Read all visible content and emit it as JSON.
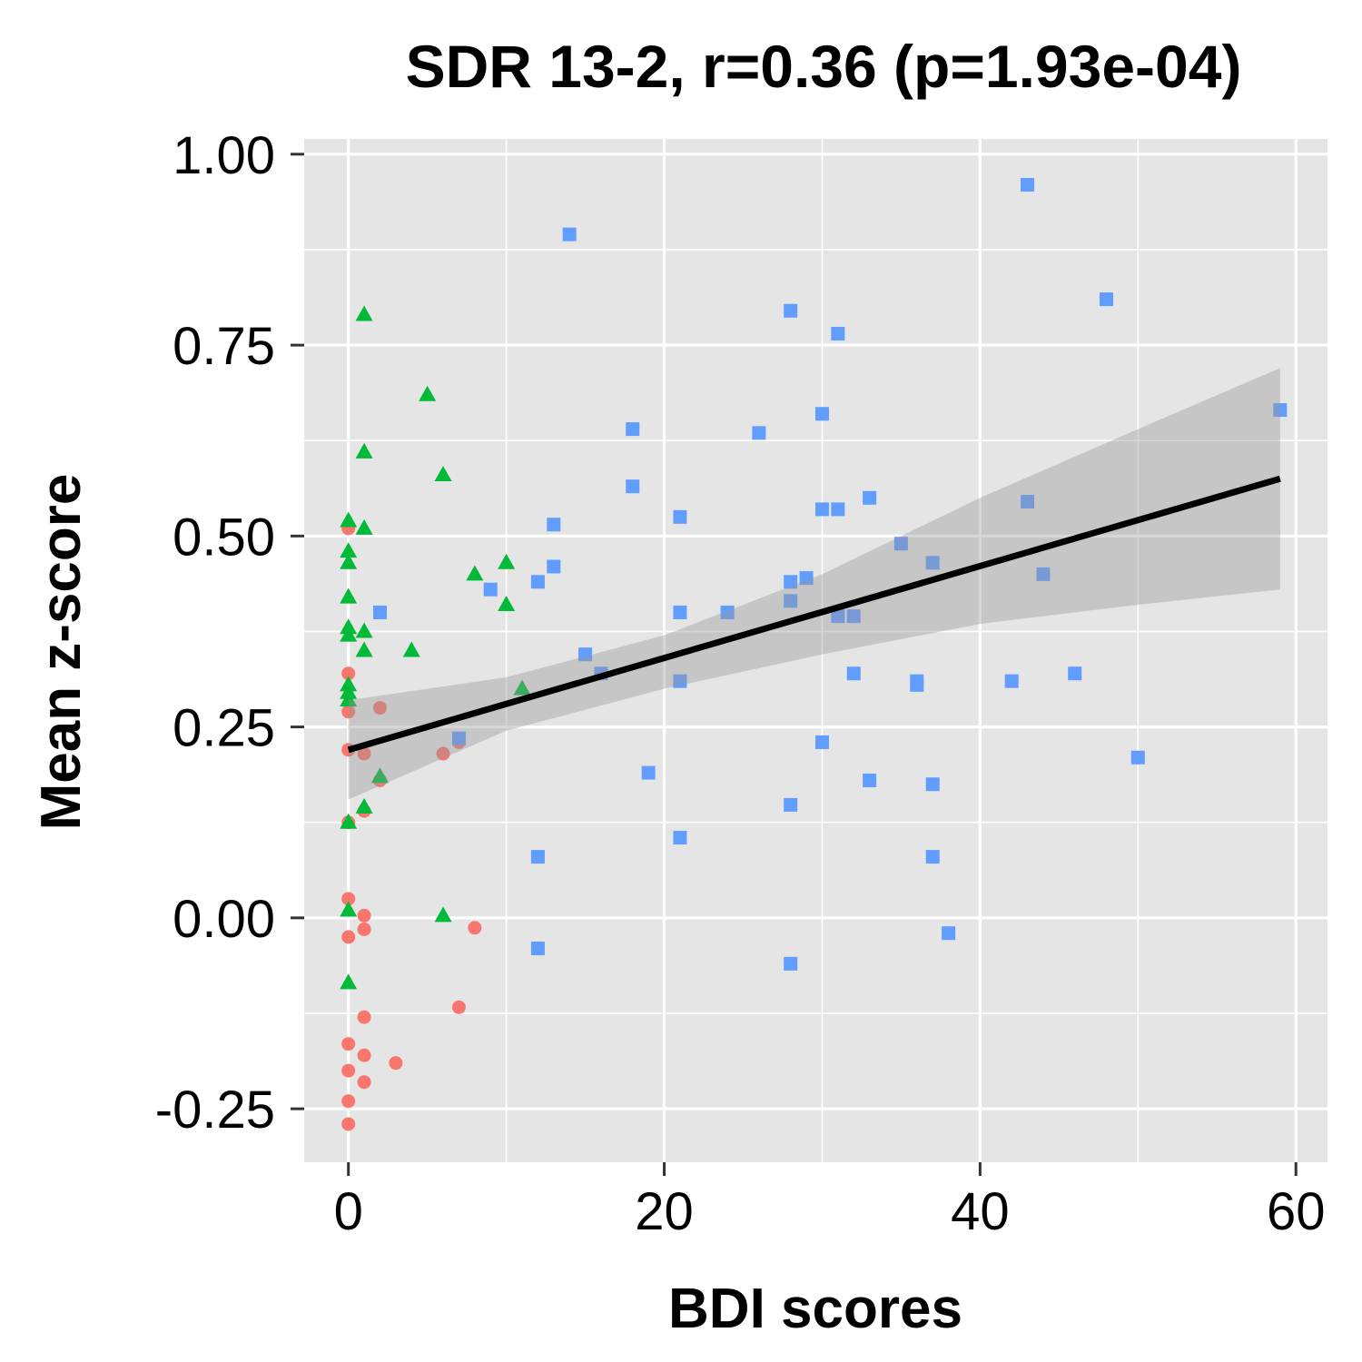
{
  "chart_data": {
    "type": "scatter",
    "title": "SDR 13-2, r=0.36 (p=1.93e-04)",
    "xlabel": "BDI scores",
    "ylabel": "Mean z-score",
    "xlim": [
      -2.8,
      62
    ],
    "ylim": [
      -0.32,
      1.02
    ],
    "x_ticks": [
      0,
      20,
      40,
      60
    ],
    "x_tick_labels": [
      "0",
      "20",
      "40",
      "60"
    ],
    "y_ticks": [
      -0.25,
      0,
      0.25,
      0.5,
      0.75,
      1.0
    ],
    "y_tick_labels": [
      "-0.25",
      "0.00",
      "0.25",
      "0.50",
      "0.75",
      "1.00"
    ],
    "grid": true,
    "legend": "none",
    "colors": {
      "panel": "#E5E5E5",
      "grid": "#FFFFFF",
      "red": "#F8766D",
      "green": "#00BA38",
      "blue": "#619CFF",
      "line": "#000000",
      "band": "#999999"
    },
    "series": [
      {
        "marker": "circle",
        "color": "#F8766D",
        "points": [
          [
            0,
            0.51
          ],
          [
            0,
            0.32
          ],
          [
            0,
            0.27
          ],
          [
            0,
            0.22
          ],
          [
            0,
            0.125
          ],
          [
            0,
            0.025
          ],
          [
            0,
            -0.025
          ],
          [
            0,
            -0.165
          ],
          [
            0,
            -0.2
          ],
          [
            0,
            -0.24
          ],
          [
            0,
            -0.27
          ],
          [
            1,
            0.215
          ],
          [
            1,
            0.14
          ],
          [
            1,
            0.003
          ],
          [
            1,
            -0.015
          ],
          [
            1,
            -0.13
          ],
          [
            1,
            -0.18
          ],
          [
            1,
            -0.215
          ],
          [
            2,
            0.275
          ],
          [
            2,
            0.18
          ],
          [
            3,
            -0.19
          ],
          [
            6,
            0.215
          ],
          [
            7,
            0.23
          ],
          [
            7,
            -0.117
          ],
          [
            8,
            -0.013
          ]
        ]
      },
      {
        "marker": "triangle",
        "color": "#00BA38",
        "points": [
          [
            0,
            0.52
          ],
          [
            0,
            0.48
          ],
          [
            0,
            0.465
          ],
          [
            0,
            0.42
          ],
          [
            0,
            0.38
          ],
          [
            0,
            0.37
          ],
          [
            0,
            0.305
          ],
          [
            0,
            0.295
          ],
          [
            0,
            0.285
          ],
          [
            0,
            0.125
          ],
          [
            0,
            0.01
          ],
          [
            0,
            -0.085
          ],
          [
            1,
            0.79
          ],
          [
            1,
            0.61
          ],
          [
            1,
            0.51
          ],
          [
            1,
            0.375
          ],
          [
            1,
            0.35
          ],
          [
            1,
            0.145
          ],
          [
            2,
            0.185
          ],
          [
            4,
            0.35
          ],
          [
            5,
            0.685
          ],
          [
            6,
            0.58
          ],
          [
            6,
            0.003
          ],
          [
            8,
            0.45
          ],
          [
            10,
            0.465
          ],
          [
            10,
            0.41
          ],
          [
            11,
            0.3
          ]
        ]
      },
      {
        "marker": "square",
        "color": "#619CFF",
        "points": [
          [
            2,
            0.4
          ],
          [
            7,
            0.235
          ],
          [
            9,
            0.43
          ],
          [
            12,
            0.44
          ],
          [
            12,
            0.08
          ],
          [
            12,
            -0.04
          ],
          [
            13,
            0.515
          ],
          [
            13,
            0.46
          ],
          [
            14,
            0.895
          ],
          [
            15,
            0.345
          ],
          [
            16,
            0.32
          ],
          [
            18,
            0.64
          ],
          [
            18,
            0.565
          ],
          [
            19,
            0.19
          ],
          [
            21,
            0.525
          ],
          [
            21,
            0.4
          ],
          [
            21,
            0.31
          ],
          [
            21,
            0.105
          ],
          [
            24,
            0.4
          ],
          [
            26,
            0.635
          ],
          [
            28,
            0.795
          ],
          [
            28,
            0.44
          ],
          [
            28,
            0.415
          ],
          [
            28,
            0.148
          ],
          [
            28,
            -0.06
          ],
          [
            29,
            0.445
          ],
          [
            30,
            0.66
          ],
          [
            30,
            0.535
          ],
          [
            30,
            0.23
          ],
          [
            31,
            0.765
          ],
          [
            31,
            0.535
          ],
          [
            31,
            0.395
          ],
          [
            32,
            0.395
          ],
          [
            32,
            0.32
          ],
          [
            33,
            0.55
          ],
          [
            33,
            0.18
          ],
          [
            35,
            0.49
          ],
          [
            36,
            0.31
          ],
          [
            36,
            0.305
          ],
          [
            37,
            0.465
          ],
          [
            37,
            0.175
          ],
          [
            37,
            0.08
          ],
          [
            38,
            -0.02
          ],
          [
            42,
            0.31
          ],
          [
            43,
            0.96
          ],
          [
            43,
            0.545
          ],
          [
            44,
            0.45
          ],
          [
            46,
            0.32
          ],
          [
            48,
            0.81
          ],
          [
            50,
            0.21
          ],
          [
            59,
            0.665
          ]
        ]
      }
    ],
    "regression": {
      "x": [
        0,
        59
      ],
      "y": [
        0.22,
        0.575
      ],
      "ci_upper": [
        [
          0,
          0.285
        ],
        [
          10,
          0.315
        ],
        [
          20,
          0.37
        ],
        [
          30,
          0.45
        ],
        [
          40,
          0.55
        ],
        [
          50,
          0.64
        ],
        [
          59,
          0.72
        ]
      ],
      "ci_lower": [
        [
          0,
          0.155
        ],
        [
          10,
          0.245
        ],
        [
          20,
          0.3
        ],
        [
          30,
          0.345
        ],
        [
          40,
          0.385
        ],
        [
          50,
          0.41
        ],
        [
          59,
          0.43
        ]
      ]
    }
  }
}
